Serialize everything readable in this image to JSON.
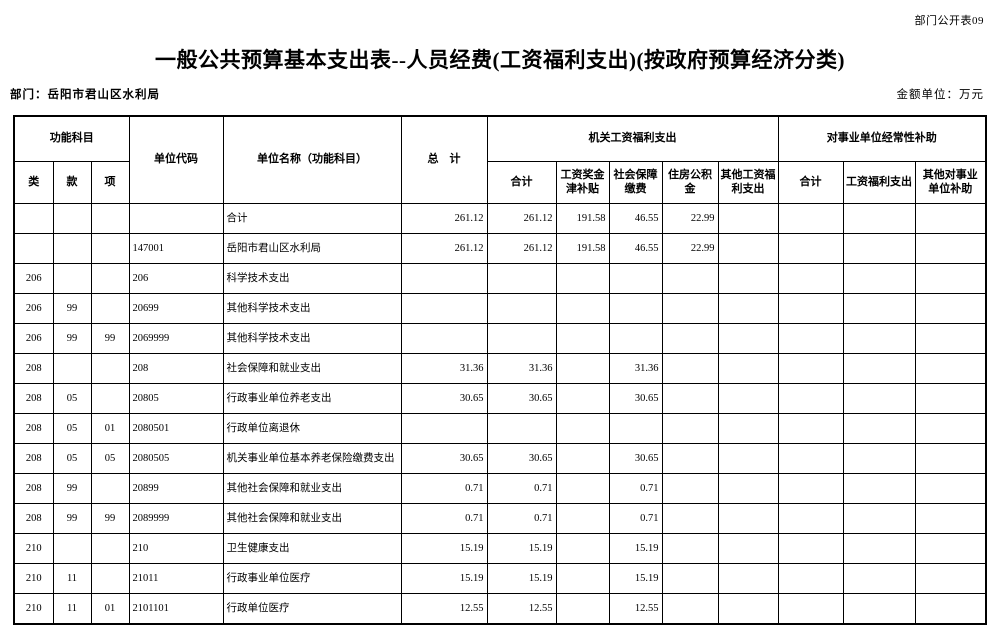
{
  "page": {
    "doc_code": "部门公开表09",
    "title": "一般公共预算基本支出表--人员经费(工资福利支出)(按政府预算经济分类)",
    "department": "部门：岳阳市君山区水利局",
    "amount_unit": "金额单位：万元"
  },
  "table": {
    "header": {
      "functional_subject": "功能科目",
      "col_class": "类",
      "col_section": "款",
      "col_item": "项",
      "unit_code": "单位代码",
      "unit_name": "单位名称（功能科目）",
      "grand_total": "总　计",
      "gov_wage_group": "机关工资福利支出",
      "gov_wage_cols": [
        "合计",
        "工资奖金津补贴",
        "社会保障缴费",
        "住房公积金",
        "其他工资福利支出"
      ],
      "inst_subsidy_group": "对事业单位经常性补助",
      "inst_subsidy_cols": [
        "合计",
        "工资福利支出",
        "其他对事业单位补助"
      ]
    },
    "rows": [
      {
        "class": "",
        "section": "",
        "item": "",
        "code": "",
        "code_indent": 0,
        "name": "合计",
        "name_indent": 0,
        "values": [
          "261.12",
          "261.12",
          "191.58",
          "46.55",
          "22.99",
          "",
          "",
          "",
          ""
        ]
      },
      {
        "class": "",
        "section": "",
        "item": "",
        "code": "147001",
        "code_indent": 1,
        "name": "岳阳市君山区水利局",
        "name_indent": 1,
        "values": [
          "261.12",
          "261.12",
          "191.58",
          "46.55",
          "22.99",
          "",
          "",
          "",
          ""
        ]
      },
      {
        "class": "206",
        "section": "",
        "item": "",
        "code": "206",
        "code_indent": 0,
        "name": "科学技术支出",
        "name_indent": 0,
        "values": [
          "",
          "",
          "",
          "",
          "",
          "",
          "",
          "",
          ""
        ]
      },
      {
        "class": "206",
        "section": "99",
        "item": "",
        "code": "20699",
        "code_indent": 0,
        "name": "其他科学技术支出",
        "name_indent": 0,
        "values": [
          "",
          "",
          "",
          "",
          "",
          "",
          "",
          "",
          ""
        ]
      },
      {
        "class": "206",
        "section": "99",
        "item": "99",
        "code": "2069999",
        "code_indent": 2,
        "name": "其他科学技术支出",
        "name_indent": 2,
        "values": [
          "",
          "",
          "",
          "",
          "",
          "",
          "",
          "",
          ""
        ]
      },
      {
        "class": "208",
        "section": "",
        "item": "",
        "code": "208",
        "code_indent": 0,
        "name": "社会保障和就业支出",
        "name_indent": 0,
        "values": [
          "31.36",
          "31.36",
          "",
          "31.36",
          "",
          "",
          "",
          "",
          ""
        ]
      },
      {
        "class": "208",
        "section": "05",
        "item": "",
        "code": "20805",
        "code_indent": 0,
        "name": "行政事业单位养老支出",
        "name_indent": 0,
        "values": [
          "30.65",
          "30.65",
          "",
          "30.65",
          "",
          "",
          "",
          "",
          ""
        ]
      },
      {
        "class": "208",
        "section": "05",
        "item": "01",
        "code": "2080501",
        "code_indent": 2,
        "name": "行政单位离退休",
        "name_indent": 2,
        "values": [
          "",
          "",
          "",
          "",
          "",
          "",
          "",
          "",
          ""
        ]
      },
      {
        "class": "208",
        "section": "05",
        "item": "05",
        "code": "2080505",
        "code_indent": 2,
        "name": "机关事业单位基本养老保险缴费支出",
        "name_indent": 2,
        "values": [
          "30.65",
          "30.65",
          "",
          "30.65",
          "",
          "",
          "",
          "",
          ""
        ]
      },
      {
        "class": "208",
        "section": "99",
        "item": "",
        "code": "20899",
        "code_indent": 0,
        "name": "其他社会保障和就业支出",
        "name_indent": 0,
        "values": [
          "0.71",
          "0.71",
          "",
          "0.71",
          "",
          "",
          "",
          "",
          ""
        ]
      },
      {
        "class": "208",
        "section": "99",
        "item": "99",
        "code": "2089999",
        "code_indent": 2,
        "name": "其他社会保障和就业支出",
        "name_indent": 2,
        "values": [
          "0.71",
          "0.71",
          "",
          "0.71",
          "",
          "",
          "",
          "",
          ""
        ]
      },
      {
        "class": "210",
        "section": "",
        "item": "",
        "code": "210",
        "code_indent": 0,
        "name": "卫生健康支出",
        "name_indent": 0,
        "values": [
          "15.19",
          "15.19",
          "",
          "15.19",
          "",
          "",
          "",
          "",
          ""
        ]
      },
      {
        "class": "210",
        "section": "11",
        "item": "",
        "code": "21011",
        "code_indent": 0,
        "name": "行政事业单位医疗",
        "name_indent": 0,
        "values": [
          "15.19",
          "15.19",
          "",
          "15.19",
          "",
          "",
          "",
          "",
          ""
        ]
      },
      {
        "class": "210",
        "section": "11",
        "item": "01",
        "code": "2101101",
        "code_indent": 2,
        "name": "行政单位医疗",
        "name_indent": 2,
        "values": [
          "12.55",
          "12.55",
          "",
          "12.55",
          "",
          "",
          "",
          "",
          ""
        ]
      }
    ]
  }
}
